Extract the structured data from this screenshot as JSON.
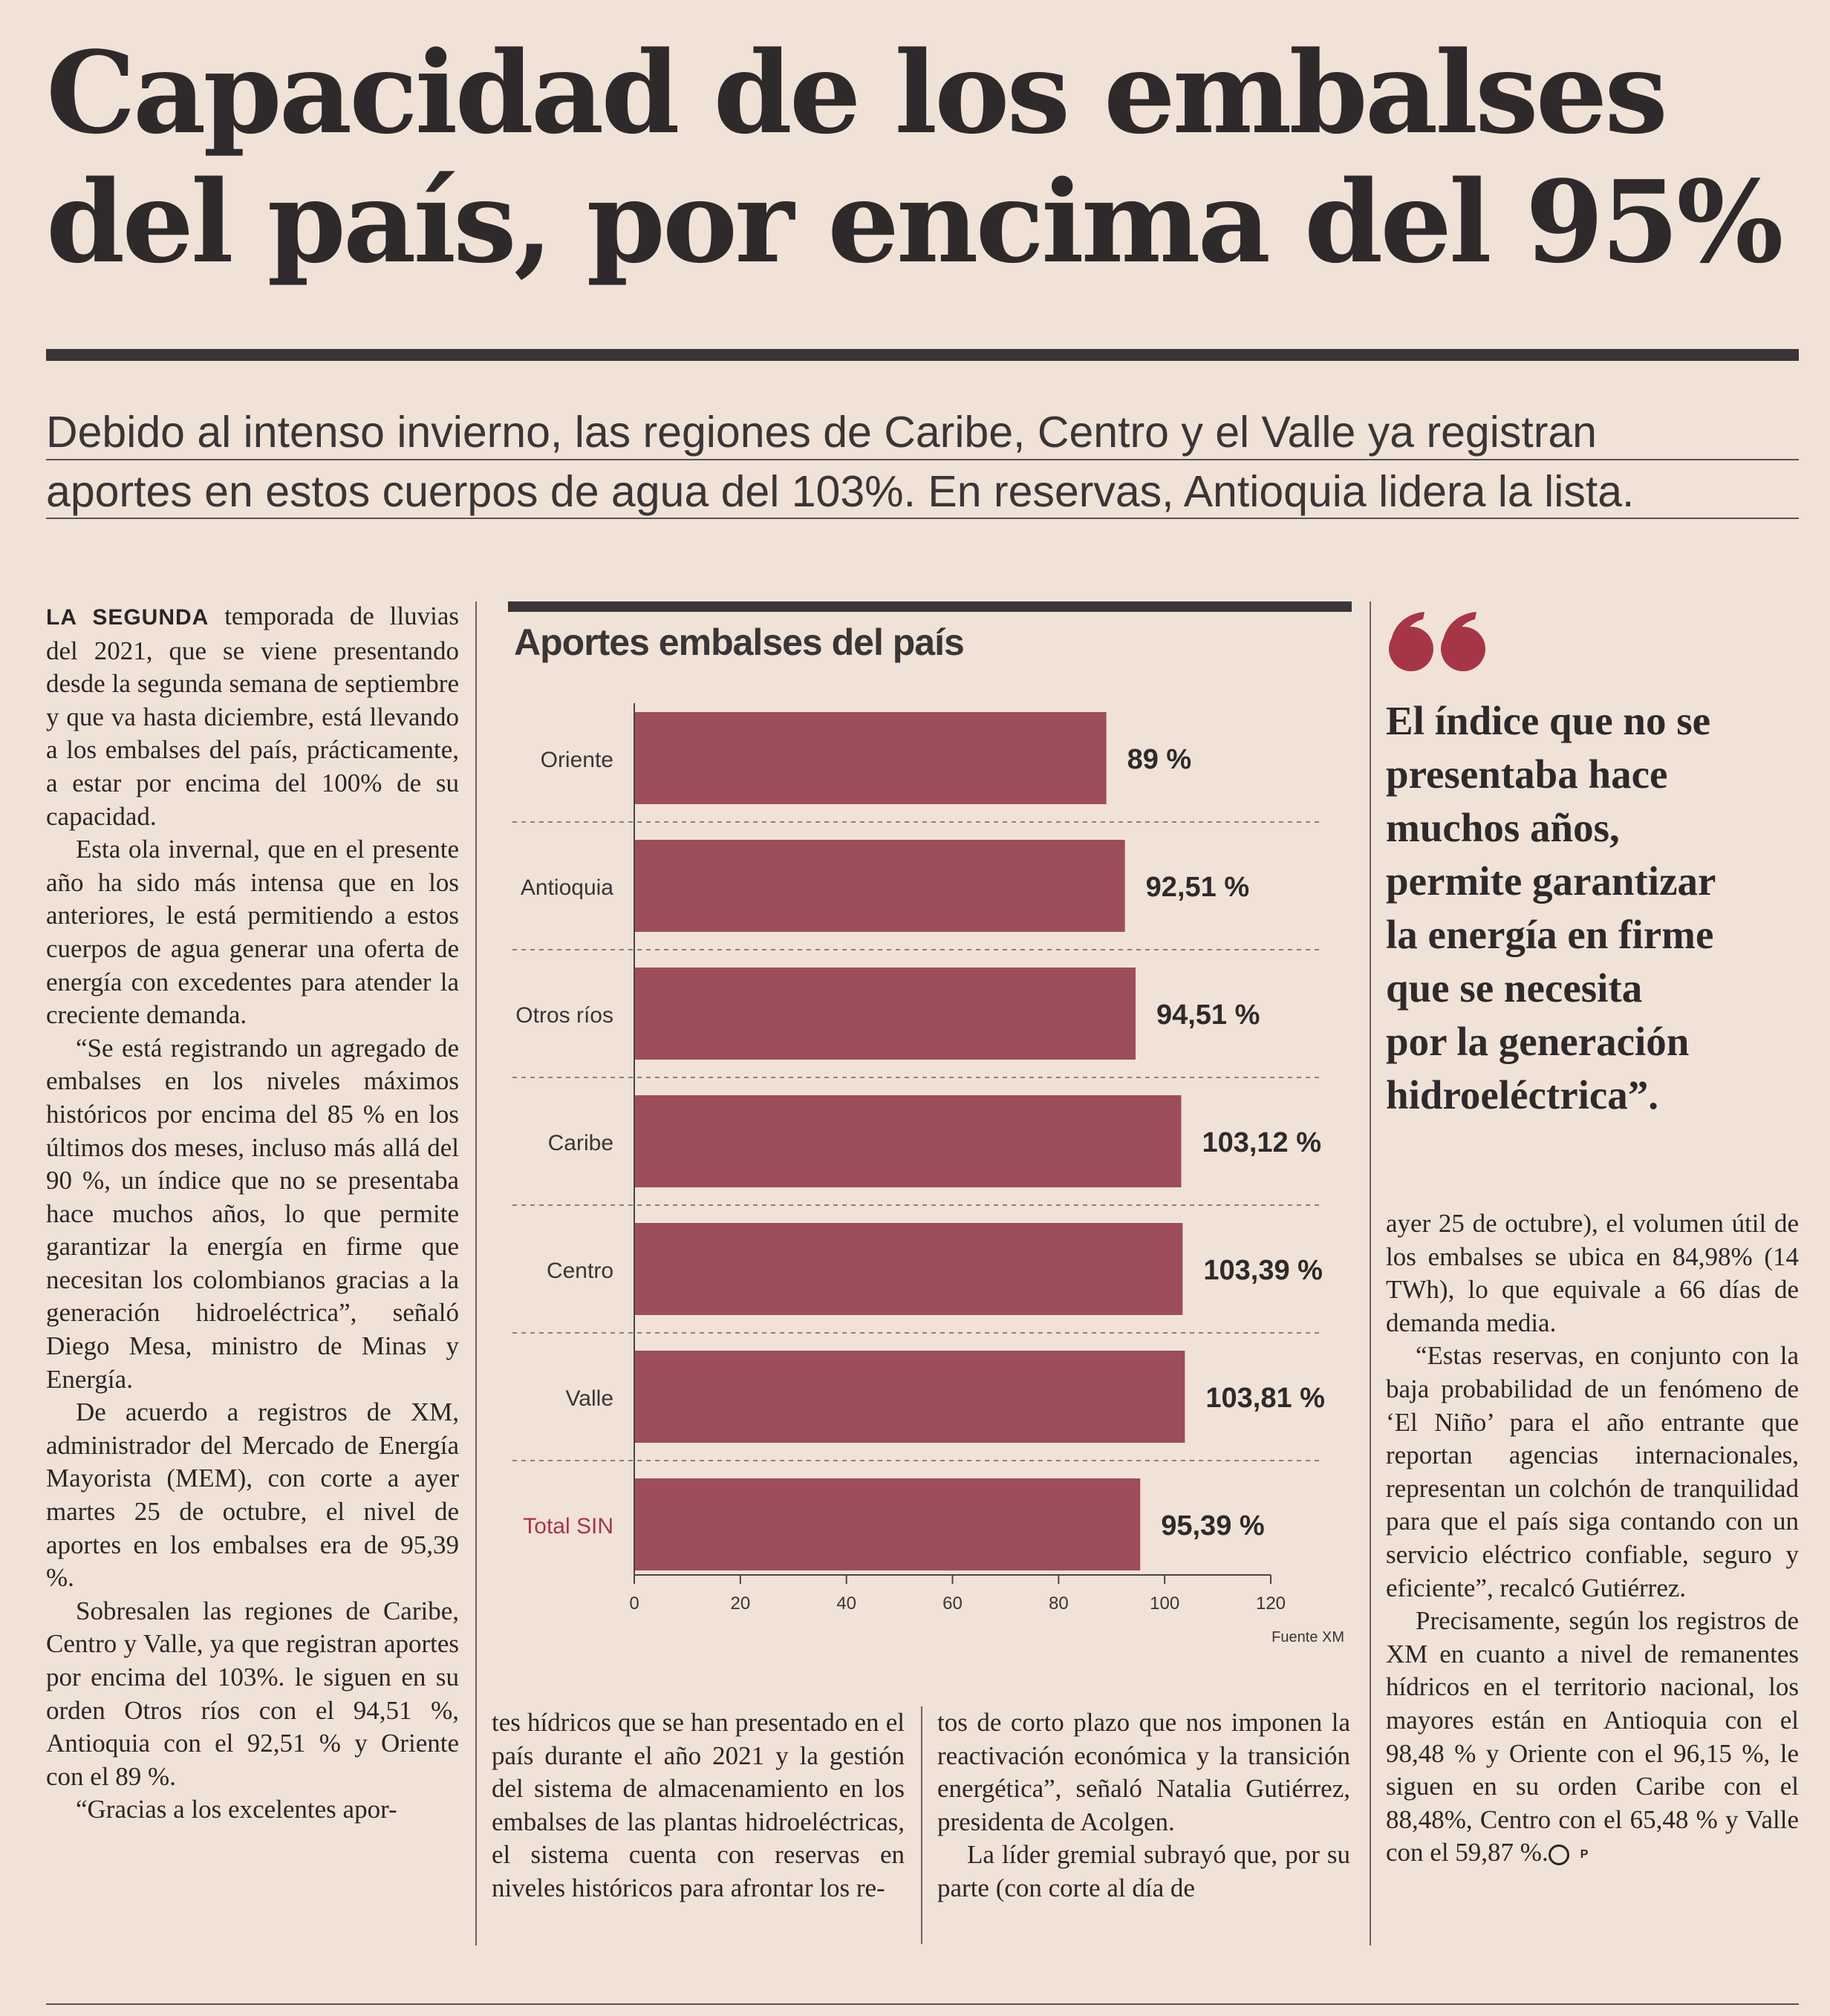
{
  "headline": [
    "Capacidad de los embalses",
    "del país, por encima del 95%"
  ],
  "subhead": [
    "Debido al intenso invierno, las regiones de Caribe, Centro y el Valle ya registran",
    "aportes en estos cuerpos de agua del 103%. En reservas, Antioquia lidera la lista."
  ],
  "body": {
    "col1": {
      "lead": "LA SEGUNDA",
      "p1": "temporada de lluvias del 2021, que se viene presentando desde la segunda semana de septiembre y que va hasta diciembre, está llevando a los embalses del país, prácticamente, a estar por encima del 100% de su capacidad.",
      "p2": "Esta ola invernal, que en el presente año ha sido más intensa que en los anteriores, le está permitiendo a estos cuerpos de agua generar una oferta de energía con excedentes para atender la creciente demanda.",
      "p3": "“Se está registrando un agregado de embalses en los niveles máximos históricos por encima del 85 % en los últimos dos meses, incluso más allá del 90 %, un índice que no se presentaba hace muchos años, lo que permite garantizar la energía en firme que necesitan los colombianos gracias a la generación hidroeléctrica”, señaló Diego Mesa, ministro de Minas y Energía.",
      "p4": "De acuerdo a registros de XM, administrador del Mercado de Energía Mayorista (MEM), con corte a ayer martes 25 de octubre, el nivel de aportes en los embalses era de 95,39 %.",
      "p5": "Sobresalen las regiones de Caribe, Centro y Valle, ya que registran aportes por encima del 103%. le siguen en su orden Otros ríos con el 94,51 %, Antioquia con el 92,51 % y Oriente con el 89 %.",
      "p6": "“Gracias a los excelentes apor-"
    },
    "col2": {
      "p1": "tes hídricos que se han presentado en el país durante el año 2021 y la gestión del sistema de almacenamiento en los embalses de las plantas hidroeléctricas, el sistema cuenta con reservas en niveles históricos para afrontar los re-"
    },
    "col3": {
      "p1": "tos de corto plazo que nos imponen la reactivación económica y la transición energética”, señaló Natalia Gutiérrez, presidenta de Acolgen.",
      "p2": "La líder gremial subrayó que, por su parte (con corte al día de"
    },
    "col4": {
      "p1": "ayer 25 de octubre), el volumen útil de los embalses se ubica en 84,98% (14 TWh), lo que equivale a 66 días de demanda media.",
      "p2": "“Estas reservas, en conjunto con la baja probabilidad de un fenómeno de ‘El Niño’ para el año entrante que reportan agencias internacionales, representan un colchón de tranquilidad para que el país siga contando con un servicio eléctrico confiable, seguro y eficiente”, recalcó Gutiérrez.",
      "p3": "Precisamente, según los registros de XM en cuanto a nivel de remanentes hídricos en el territorio nacional, los mayores están en Antioquia con el 98,48 % y Oriente con el 96,15 %, le siguen en su orden Caribe con el 88,48%, Centro con el 65,48 % y Valle con el 59,87 %.",
      "end_mark": "P"
    }
  },
  "pullquote": [
    "El índice que no se",
    "presentaba hace",
    "muchos años,",
    "permite garantizar",
    "la energía en firme",
    "que se necesita",
    "por la generación",
    "hidroeléctrica”."
  ],
  "chart_data": {
    "type": "bar",
    "orientation": "horizontal",
    "title": "Aportes embalses del país",
    "categories": [
      "Oriente",
      "Antioquia",
      "Otros ríos",
      "Caribe",
      "Centro",
      "Valle",
      "Total SIN"
    ],
    "values": [
      89,
      92.51,
      94.51,
      103.12,
      103.39,
      103.81,
      95.39
    ],
    "value_labels": [
      "89 %",
      "92,51 %",
      "94,51 %",
      "103,12 %",
      "103,39 %",
      "103,81 %",
      "95,39 %"
    ],
    "xticks": [
      0,
      20,
      40,
      60,
      80,
      100,
      120
    ],
    "xlim": [
      0,
      120
    ],
    "source": "Fuente XM",
    "bar_color": "#9e4d5a",
    "highlight_label_color": "#a63646",
    "grid": false,
    "separators": "dashed"
  }
}
